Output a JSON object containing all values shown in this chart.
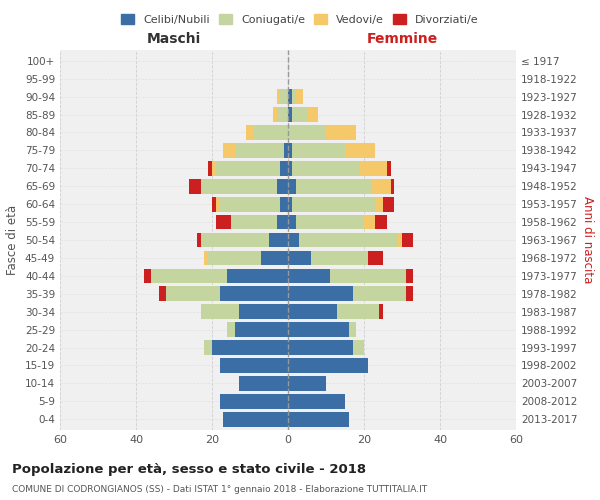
{
  "age_groups": [
    "0-4",
    "5-9",
    "10-14",
    "15-19",
    "20-24",
    "25-29",
    "30-34",
    "35-39",
    "40-44",
    "45-49",
    "50-54",
    "55-59",
    "60-64",
    "65-69",
    "70-74",
    "75-79",
    "80-84",
    "85-89",
    "90-94",
    "95-99",
    "100+"
  ],
  "birth_years": [
    "2013-2017",
    "2008-2012",
    "2003-2007",
    "1998-2002",
    "1993-1997",
    "1988-1992",
    "1983-1987",
    "1978-1982",
    "1973-1977",
    "1968-1972",
    "1963-1967",
    "1958-1962",
    "1953-1957",
    "1948-1952",
    "1943-1947",
    "1938-1942",
    "1933-1937",
    "1928-1932",
    "1923-1927",
    "1918-1922",
    "≤ 1917"
  ],
  "male": {
    "celibi": [
      17,
      18,
      13,
      18,
      20,
      14,
      13,
      18,
      16,
      7,
      5,
      3,
      2,
      3,
      2,
      1,
      0,
      0,
      0,
      0,
      0
    ],
    "coniugati": [
      0,
      0,
      0,
      0,
      2,
      2,
      10,
      14,
      20,
      14,
      18,
      12,
      16,
      20,
      17,
      13,
      9,
      3,
      2,
      0,
      0
    ],
    "vedovi": [
      0,
      0,
      0,
      0,
      0,
      0,
      0,
      0,
      0,
      1,
      0,
      0,
      1,
      0,
      1,
      3,
      2,
      1,
      1,
      0,
      0
    ],
    "divorziati": [
      0,
      0,
      0,
      0,
      0,
      0,
      0,
      2,
      2,
      0,
      1,
      4,
      1,
      3,
      1,
      0,
      0,
      0,
      0,
      0,
      0
    ]
  },
  "female": {
    "nubili": [
      16,
      15,
      10,
      21,
      17,
      16,
      13,
      17,
      11,
      6,
      3,
      2,
      1,
      2,
      1,
      1,
      0,
      1,
      1,
      0,
      0
    ],
    "coniugate": [
      0,
      0,
      0,
      0,
      3,
      2,
      11,
      14,
      20,
      15,
      26,
      18,
      22,
      20,
      18,
      14,
      10,
      4,
      1,
      0,
      0
    ],
    "vedove": [
      0,
      0,
      0,
      0,
      0,
      0,
      0,
      0,
      0,
      0,
      1,
      3,
      2,
      5,
      7,
      8,
      8,
      3,
      2,
      0,
      0
    ],
    "divorziate": [
      0,
      0,
      0,
      0,
      0,
      0,
      1,
      2,
      2,
      4,
      3,
      3,
      3,
      1,
      1,
      0,
      0,
      0,
      0,
      0,
      0
    ]
  },
  "colors": {
    "celibi": "#3a6ea5",
    "coniugati": "#c5d5a0",
    "vedovi": "#f5c869",
    "divorziati": "#cc2020"
  },
  "title": "Popolazione per età, sesso e stato civile - 2018",
  "subtitle": "COMUNE DI CODRONGIANOS (SS) - Dati ISTAT 1° gennaio 2018 - Elaborazione TUTTITALIA.IT",
  "xlabel_left": "Maschi",
  "xlabel_right": "Femmine",
  "ylabel_left": "Fasce di età",
  "ylabel_right": "Anni di nascita",
  "xlim": 60,
  "bg_color": "#f0f0f0",
  "grid_color": "#cccccc"
}
